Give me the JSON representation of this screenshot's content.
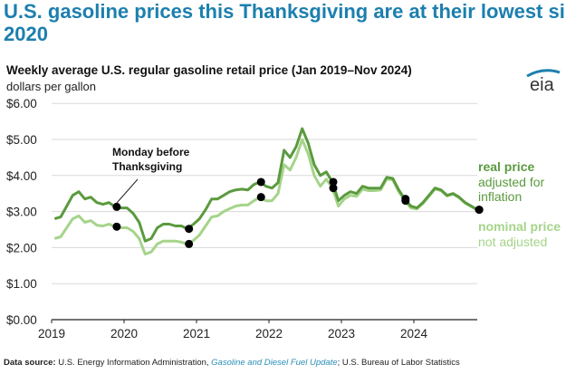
{
  "headline": [
    "U.S. gasoline prices this Thanksgiving are at their lowest since",
    "2020"
  ],
  "logo_text": "eia",
  "colors": {
    "headline": "#1c7fae",
    "real": "#5b9a3e",
    "nominal": "#a5d48a",
    "dot": "#000000",
    "grid": "#d9d9d9"
  },
  "chart_data": {
    "type": "line",
    "title": "Weekly average U.S. regular gasoline retail price (Jan 2019–Nov 2024)",
    "ylabel": "dollars per gallon",
    "xlabel": "",
    "ylim": [
      0,
      6
    ],
    "yticks": [
      "$0.00",
      "$1.00",
      "$2.00",
      "$3.00",
      "$4.00",
      "$5.00",
      "$6.00"
    ],
    "xticks": [
      "2019",
      "2020",
      "2021",
      "2022",
      "2023",
      "2024"
    ],
    "grid": true,
    "legend_placement": "right, inline labels",
    "series": [
      {
        "name": "real price",
        "sublabel": "adjusted for inflation",
        "x": [
          "2019-01",
          "2019-02",
          "2019-03",
          "2019-04",
          "2019-05",
          "2019-06",
          "2019-07",
          "2019-08",
          "2019-09",
          "2019-10",
          "2019-11",
          "2019-12",
          "2020-01",
          "2020-02",
          "2020-03",
          "2020-04",
          "2020-05",
          "2020-06",
          "2020-07",
          "2020-08",
          "2020-09",
          "2020-10",
          "2020-11",
          "2020-12",
          "2021-01",
          "2021-02",
          "2021-03",
          "2021-04",
          "2021-05",
          "2021-06",
          "2021-07",
          "2021-08",
          "2021-09",
          "2021-10",
          "2021-11",
          "2021-12",
          "2022-01",
          "2022-02",
          "2022-03",
          "2022-04",
          "2022-05",
          "2022-06",
          "2022-07",
          "2022-08",
          "2022-09",
          "2022-10",
          "2022-11",
          "2022-12",
          "2023-01",
          "2023-02",
          "2023-03",
          "2023-04",
          "2023-05",
          "2023-06",
          "2023-07",
          "2023-08",
          "2023-09",
          "2023-10",
          "2023-11",
          "2023-12",
          "2024-01",
          "2024-02",
          "2024-03",
          "2024-04",
          "2024-05",
          "2024-06",
          "2024-07",
          "2024-08",
          "2024-09",
          "2024-10",
          "2024-11"
        ],
        "values": [
          2.8,
          2.85,
          3.15,
          3.45,
          3.55,
          3.35,
          3.4,
          3.25,
          3.2,
          3.25,
          3.13,
          3.1,
          3.1,
          2.95,
          2.7,
          2.18,
          2.25,
          2.55,
          2.65,
          2.65,
          2.6,
          2.6,
          2.52,
          2.65,
          2.8,
          3.05,
          3.35,
          3.35,
          3.45,
          3.55,
          3.6,
          3.62,
          3.6,
          3.75,
          3.82,
          3.7,
          3.65,
          3.8,
          4.7,
          4.5,
          4.8,
          5.3,
          4.9,
          4.3,
          4.0,
          4.1,
          3.82,
          3.3,
          3.45,
          3.55,
          3.5,
          3.7,
          3.65,
          3.65,
          3.65,
          3.95,
          3.92,
          3.6,
          3.35,
          3.15,
          3.1,
          3.25,
          3.45,
          3.65,
          3.6,
          3.45,
          3.5,
          3.4,
          3.25,
          3.15,
          3.05
        ]
      },
      {
        "name": "nominal price",
        "sublabel": "not adjusted",
        "x": [
          "2019-01",
          "2019-02",
          "2019-03",
          "2019-04",
          "2019-05",
          "2019-06",
          "2019-07",
          "2019-08",
          "2019-09",
          "2019-10",
          "2019-11",
          "2019-12",
          "2020-01",
          "2020-02",
          "2020-03",
          "2020-04",
          "2020-05",
          "2020-06",
          "2020-07",
          "2020-08",
          "2020-09",
          "2020-10",
          "2020-11",
          "2020-12",
          "2021-01",
          "2021-02",
          "2021-03",
          "2021-04",
          "2021-05",
          "2021-06",
          "2021-07",
          "2021-08",
          "2021-09",
          "2021-10",
          "2021-11",
          "2021-12",
          "2022-01",
          "2022-02",
          "2022-03",
          "2022-04",
          "2022-05",
          "2022-06",
          "2022-07",
          "2022-08",
          "2022-09",
          "2022-10",
          "2022-11",
          "2022-12",
          "2023-01",
          "2023-02",
          "2023-03",
          "2023-04",
          "2023-05",
          "2023-06",
          "2023-07",
          "2023-08",
          "2023-09",
          "2023-10",
          "2023-11",
          "2023-12",
          "2024-01",
          "2024-02",
          "2024-03",
          "2024-04",
          "2024-05",
          "2024-06",
          "2024-07",
          "2024-08",
          "2024-09",
          "2024-10",
          "2024-11"
        ],
        "values": [
          2.25,
          2.3,
          2.55,
          2.8,
          2.88,
          2.7,
          2.75,
          2.62,
          2.6,
          2.65,
          2.58,
          2.55,
          2.55,
          2.45,
          2.25,
          1.82,
          1.88,
          2.1,
          2.18,
          2.18,
          2.18,
          2.15,
          2.1,
          2.2,
          2.35,
          2.6,
          2.85,
          2.88,
          3.0,
          3.08,
          3.15,
          3.18,
          3.18,
          3.3,
          3.4,
          3.3,
          3.3,
          3.5,
          4.3,
          4.15,
          4.5,
          5.0,
          4.6,
          4.0,
          3.7,
          3.9,
          3.65,
          3.15,
          3.35,
          3.45,
          3.42,
          3.62,
          3.58,
          3.58,
          3.6,
          3.9,
          3.88,
          3.55,
          3.3,
          3.1,
          3.07,
          3.22,
          3.42,
          3.62,
          3.58,
          3.43,
          3.48,
          3.38,
          3.23,
          3.14,
          3.05
        ]
      }
    ],
    "markers": {
      "label": [
        "Monday before",
        "Thanksgiving"
      ],
      "points": [
        {
          "date": "2019-11-25",
          "real": 3.13,
          "nominal": 2.58
        },
        {
          "date": "2020-11-23",
          "real": 2.52,
          "nominal": 2.1
        },
        {
          "date": "2021-11-22",
          "real": 3.82,
          "nominal": 3.4
        },
        {
          "date": "2022-11-21",
          "real": 3.82,
          "nominal": 3.65
        },
        {
          "date": "2023-11-20",
          "real": 3.35,
          "nominal": 3.3
        },
        {
          "date": "2024-11-25",
          "real": 3.05,
          "nominal": 3.05
        }
      ]
    }
  },
  "footer": {
    "label": "Data source:",
    "text1": " U.S. Energy Information Administration, ",
    "link": "Gasoline and Diesel Fuel Update",
    "text2": "; U.S. Bureau of Labor Statistics"
  }
}
